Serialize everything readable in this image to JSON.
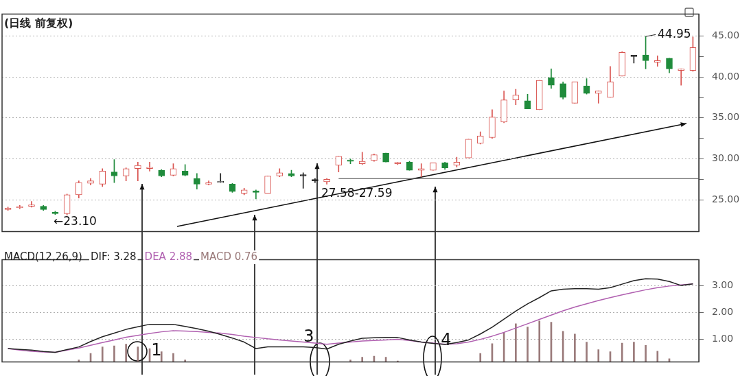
{
  "chart_data": [
    {
      "type": "candlestick",
      "title": "(日线 前复权)",
      "categories": [
        null,
        null,
        null,
        null,
        null,
        null,
        null,
        null,
        null,
        null,
        null,
        null,
        null,
        null,
        null,
        null,
        null,
        null,
        null,
        null,
        null,
        null,
        null,
        null,
        null,
        null,
        null,
        null,
        null,
        null,
        null,
        null,
        null,
        null,
        null,
        null,
        null,
        null,
        null,
        null,
        null,
        null,
        null,
        null,
        null,
        null,
        null,
        null,
        null,
        null,
        null,
        null,
        null,
        null,
        null,
        null,
        null,
        null,
        null
      ],
      "ohlc": [
        [
          23.8,
          24.1,
          23.7,
          23.9
        ],
        [
          24.0,
          24.3,
          23.9,
          24.1
        ],
        [
          24.2,
          24.8,
          24.1,
          24.3
        ],
        [
          24.2,
          24.3,
          23.7,
          23.8
        ],
        [
          23.5,
          23.6,
          23.2,
          23.3
        ],
        [
          23.3,
          25.7,
          23.1,
          25.6
        ],
        [
          25.6,
          27.3,
          25.2,
          27.1
        ],
        [
          27.0,
          27.6,
          26.8,
          27.3
        ],
        [
          26.9,
          28.8,
          26.6,
          28.5
        ],
        [
          28.4,
          29.9,
          27.1,
          27.9
        ],
        [
          27.9,
          28.9,
          27.3,
          28.8
        ],
        [
          28.8,
          29.6,
          27.3,
          29.2
        ],
        [
          28.8,
          29.6,
          28.5,
          28.9
        ],
        [
          28.6,
          28.7,
          27.8,
          27.9
        ],
        [
          28.0,
          29.4,
          27.9,
          28.8
        ],
        [
          28.5,
          29.3,
          27.9,
          28.0
        ],
        [
          27.6,
          28.2,
          26.3,
          26.9
        ],
        [
          26.9,
          27.3,
          26.8,
          27.0
        ],
        [
          27.1,
          28.2,
          27.1,
          27.2
        ],
        [
          26.9,
          27.0,
          25.9,
          26.0
        ],
        [
          25.8,
          26.4,
          25.6,
          26.2
        ],
        [
          26.1,
          26.2,
          25.1,
          25.9
        ],
        [
          25.8,
          27.9,
          25.8,
          27.9
        ],
        [
          27.9,
          28.8,
          27.8,
          28.3
        ],
        [
          28.2,
          28.6,
          27.8,
          27.9
        ],
        [
          27.9,
          28.3,
          26.4,
          27.9
        ],
        [
          27.3,
          27.6,
          27.1,
          27.3
        ],
        [
          27.2,
          27.6,
          26.9,
          27.5
        ],
        [
          29.2,
          30.3,
          28.4,
          30.3
        ],
        [
          29.7,
          30.0,
          29.4,
          29.7
        ],
        [
          29.4,
          30.8,
          29.3,
          29.7
        ],
        [
          29.8,
          30.6,
          29.7,
          30.5
        ],
        [
          30.7,
          30.7,
          29.6,
          29.6
        ],
        [
          29.4,
          29.6,
          29.3,
          29.5
        ],
        [
          29.6,
          29.7,
          28.6,
          28.6
        ],
        [
          28.6,
          29.4,
          27.8,
          28.8
        ],
        [
          28.6,
          29.5,
          28.6,
          29.5
        ],
        [
          29.5,
          29.6,
          28.7,
          28.9
        ],
        [
          29.2,
          30.2,
          29.0,
          29.6
        ],
        [
          30.1,
          32.4,
          30.1,
          32.4
        ],
        [
          31.9,
          33.3,
          31.8,
          32.8
        ],
        [
          32.6,
          36.0,
          32.5,
          35.1
        ],
        [
          34.5,
          38.3,
          34.4,
          37.2
        ],
        [
          37.2,
          38.5,
          36.6,
          37.8
        ],
        [
          37.1,
          37.9,
          36.1,
          36.1
        ],
        [
          36.0,
          39.6,
          36.0,
          39.6
        ],
        [
          39.9,
          41.0,
          38.6,
          39.0
        ],
        [
          39.2,
          39.4,
          37.3,
          37.5
        ],
        [
          36.8,
          39.4,
          36.8,
          39.4
        ],
        [
          38.9,
          39.8,
          37.9,
          38.0
        ],
        [
          38.0,
          38.3,
          36.8,
          38.3
        ],
        [
          37.5,
          41.3,
          37.5,
          39.4
        ],
        [
          40.1,
          43.1,
          40.1,
          43.0
        ],
        [
          42.5,
          42.5,
          41.7,
          42.5
        ],
        [
          42.7,
          44.95,
          41.0,
          42.0
        ],
        [
          41.8,
          42.6,
          41.3,
          42.0
        ],
        [
          42.3,
          42.3,
          40.5,
          41.0
        ],
        [
          40.8,
          41.0,
          39.0,
          40.9
        ],
        [
          40.8,
          44.9,
          40.7,
          43.6
        ]
      ],
      "colors": [
        "#d9534f",
        "#d9534f",
        "#d9534f",
        "#1f8b3b",
        "#1f8b3b",
        "#d9534f",
        "#d9534f",
        "#d9534f",
        "#d9534f",
        "#1f8b3b",
        "#d9534f",
        "#d9534f",
        "#d9534f",
        "#1f8b3b",
        "#d9534f",
        "#1f8b3b",
        "#1f8b3b",
        "#d9534f",
        "#222222",
        "#1f8b3b",
        "#d9534f",
        "#1f8b3b",
        "#d9534f",
        "#d9534f",
        "#1f8b3b",
        "#222222",
        "#222222",
        "#d9534f",
        "#d9534f",
        "#1f8b3b",
        "#d9534f",
        "#d9534f",
        "#1f8b3b",
        "#d9534f",
        "#1f8b3b",
        "#d9534f",
        "#d9534f",
        "#1f8b3b",
        "#d9534f",
        "#d9534f",
        "#d9534f",
        "#d9534f",
        "#d9534f",
        "#d9534f",
        "#1f8b3b",
        "#d9534f",
        "#1f8b3b",
        "#1f8b3b",
        "#d9534f",
        "#1f8b3b",
        "#d9534f",
        "#d9534f",
        "#d9534f",
        "#222222",
        "#1f8b3b",
        "#d9534f",
        "#1f8b3b",
        "#d9534f",
        "#d9534f"
      ],
      "ylim": [
        21.1,
        47.7
      ],
      "yticks": [
        {
          "value": 25,
          "label": "25.00"
        },
        {
          "value": 27.5,
          "label": null
        },
        {
          "value": 30,
          "label": "30.00"
        },
        {
          "value": 32.5,
          "label": null
        },
        {
          "value": 35,
          "label": "35.00"
        },
        {
          "value": 37.5,
          "label": null
        },
        {
          "value": 40,
          "label": "40.00"
        },
        {
          "value": 42.5,
          "label": null
        },
        {
          "value": 45,
          "label": "45.00"
        }
      ],
      "grid": "y",
      "ref_lines": [
        {
          "axis": "y",
          "value": 27.58,
          "color": "#555555"
        }
      ],
      "annotations": [
        "←23.10",
        {
          "text": "27.58-27.59",
          "y": 27.58
        },
        "44.95"
      ]
    },
    {
      "type": "line",
      "title": "MACD(12,26,9)",
      "categories": [
        null,
        null,
        null,
        null,
        null,
        null,
        null,
        null,
        null,
        null,
        null,
        null,
        null,
        null,
        null,
        null,
        null,
        null,
        null,
        null,
        null,
        null,
        null,
        null,
        null,
        null,
        null,
        null,
        null,
        null,
        null,
        null,
        null,
        null,
        null,
        null,
        null,
        null,
        null,
        null,
        null,
        null,
        null,
        null,
        null,
        null,
        null,
        null,
        null,
        null,
        null,
        null,
        null,
        null,
        null,
        null,
        null,
        null,
        null
      ],
      "series": [
        {
          "name": "DIF: 3.28",
          "color": "#222222",
          "values": [
            0.66,
            0.63,
            0.6,
            0.55,
            0.52,
            0.62,
            0.72,
            0.92,
            1.1,
            1.23,
            1.37,
            1.47,
            1.56,
            1.56,
            1.56,
            1.48,
            1.4,
            1.3,
            1.18,
            1.05,
            0.9,
            0.66,
            0.72,
            0.72,
            0.72,
            0.72,
            0.7,
            0.64,
            0.82,
            0.94,
            1.04,
            1.06,
            1.07,
            1.07,
            0.98,
            0.9,
            0.85,
            0.81,
            0.88,
            0.98,
            1.2,
            1.45,
            1.75,
            2.05,
            2.32,
            2.55,
            2.8,
            2.86,
            2.88,
            2.88,
            2.86,
            2.92,
            3.05,
            3.18,
            3.25,
            3.24,
            3.15,
            3.0,
            3.06
          ]
        },
        {
          "name": "DEA 2.88",
          "color": "#b060b0",
          "values": [
            0.66,
            0.6,
            0.56,
            0.53,
            0.52,
            0.6,
            0.68,
            0.78,
            0.88,
            0.98,
            1.08,
            1.15,
            1.22,
            1.28,
            1.32,
            1.31,
            1.29,
            1.26,
            1.23,
            1.18,
            1.12,
            1.07,
            1.02,
            0.98,
            0.94,
            0.9,
            0.86,
            0.82,
            0.86,
            0.9,
            0.94,
            0.96,
            0.98,
            1.0,
            0.96,
            0.9,
            0.86,
            0.82,
            0.84,
            0.9,
            1.0,
            1.12,
            1.26,
            1.42,
            1.58,
            1.74,
            1.9,
            2.06,
            2.2,
            2.32,
            2.44,
            2.55,
            2.65,
            2.75,
            2.84,
            2.92,
            2.98,
            3.02,
            3.06
          ]
        },
        {
          "name": "MACD 0.76",
          "type": "bar",
          "color": "#9a7a7a",
          "values": [
            null,
            null,
            null,
            null,
            null,
            null,
            0.24,
            0.48,
            0.72,
            0.76,
            0.82,
            0.72,
            0.66,
            0.54,
            0.48,
            0.24,
            null,
            null,
            null,
            null,
            null,
            null,
            null,
            null,
            null,
            null,
            null,
            null,
            null,
            0.24,
            0.34,
            0.38,
            0.34,
            0.2,
            null,
            null,
            null,
            null,
            null,
            null,
            0.48,
            0.84,
            1.26,
            1.58,
            1.46,
            1.68,
            1.64,
            1.3,
            1.2,
            0.9,
            0.62,
            0.54,
            0.86,
            0.9,
            0.78,
            0.56,
            0.28,
            null,
            null
          ]
        }
      ],
      "ylim": [
        0.16,
        3.96
      ],
      "yticks": [
        {
          "value": 1,
          "label": "1.00"
        },
        {
          "value": 2,
          "label": "2.00"
        },
        {
          "value": 3,
          "label": "3.00"
        }
      ],
      "grid": "y",
      "legend": "top left",
      "marker": "none",
      "line_style": "solid",
      "annotations": [
        "1",
        "3",
        "4"
      ]
    }
  ]
}
